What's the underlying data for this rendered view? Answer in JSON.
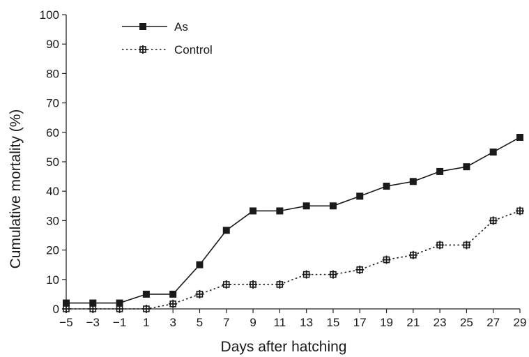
{
  "chart_data": {
    "type": "line",
    "xlabel": "Days after hatching",
    "ylabel": "Cumulative mortality (%)",
    "xlim": [
      -5,
      29
    ],
    "ylim": [
      0,
      100
    ],
    "x_ticks": [
      -5,
      -3,
      -1,
      1,
      3,
      5,
      7,
      9,
      11,
      13,
      15,
      17,
      19,
      21,
      23,
      25,
      27,
      29
    ],
    "x_tick_labels": [
      "−5",
      "−3",
      "−1",
      "1",
      "3",
      "5",
      "7",
      "9",
      "11",
      "13",
      "15",
      "17",
      "19",
      "21",
      "23",
      "25",
      "27",
      "29"
    ],
    "y_ticks": [
      0,
      10,
      20,
      30,
      40,
      50,
      60,
      70,
      80,
      90,
      100
    ],
    "y_tick_labels": [
      "0",
      "10",
      "20",
      "30",
      "40",
      "50",
      "60",
      "70",
      "80",
      "90",
      "100"
    ],
    "grid": false,
    "legend_position": "top-left",
    "series": [
      {
        "name": "As",
        "style": "solid",
        "marker": "filled-square",
        "color": "#1a1a1a",
        "x": [
          -5,
          -3,
          -1,
          1,
          3,
          5,
          7,
          9,
          11,
          13,
          15,
          17,
          19,
          21,
          23,
          25,
          27,
          29
        ],
        "y": [
          2,
          2,
          2,
          5,
          5,
          15,
          26.7,
          33.3,
          33.3,
          35,
          35,
          38.3,
          41.7,
          43.3,
          46.7,
          48.3,
          53.3,
          58.3
        ]
      },
      {
        "name": "Control",
        "style": "dotted",
        "marker": "cross-square",
        "color": "#1a1a1a",
        "x": [
          -5,
          -3,
          -1,
          1,
          3,
          5,
          7,
          9,
          11,
          13,
          15,
          17,
          19,
          21,
          23,
          25,
          27,
          29
        ],
        "y": [
          0,
          0,
          0,
          0,
          1.7,
          5,
          8.3,
          8.3,
          8.3,
          11.7,
          11.7,
          13.3,
          16.7,
          18.3,
          21.7,
          21.7,
          30,
          33.3
        ]
      }
    ]
  }
}
